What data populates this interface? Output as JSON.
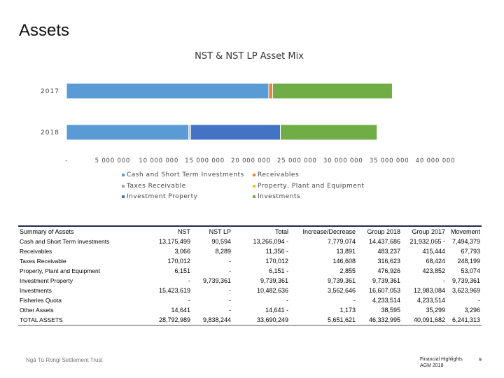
{
  "page": {
    "title": "Assets"
  },
  "chart_data": {
    "type": "bar",
    "orientation": "horizontal",
    "stacked": true,
    "title": "NST & NST LP Asset Mix",
    "categories": [
      "2017",
      "2018"
    ],
    "series": [
      {
        "name": "Cash and Short Term Investments",
        "color": "#5b9bd5",
        "values": [
          21932065,
          13266094
        ]
      },
      {
        "name": "Receivables",
        "color": "#ed7d31",
        "values": [
          415444,
          11356
        ]
      },
      {
        "name": "Taxes Receivable",
        "color": "#a5a5a5",
        "values": [
          0,
          170012
        ]
      },
      {
        "name": "Property, Plant and Equipment",
        "color": "#ffc000",
        "values": [
          0,
          6151
        ]
      },
      {
        "name": "Investment Property",
        "color": "#4472c4",
        "values": [
          0,
          9739361
        ]
      },
      {
        "name": "Investments",
        "color": "#70ad47",
        "values": [
          12983084,
          10482636
        ]
      }
    ],
    "xlim": [
      0,
      40000000
    ],
    "xticks": [
      "-",
      "5 000 000",
      "10 000 000",
      "15 000 000",
      "20 000 000",
      "25 000 000",
      "30 000 000",
      "35 000 000",
      "40 000 000"
    ],
    "legend_position": "bottom"
  },
  "table": {
    "headers": [
      "Summary of Assets",
      "NST",
      "NST LP",
      "Total",
      "Increase/Decrease",
      "Group 2018",
      "Group 2017",
      "Movement"
    ],
    "rows": [
      [
        "Cash and Short Term Investments",
        "13,175,499",
        "90,594",
        "13,266,094 -",
        "7,779,074",
        "14,437,686",
        "21,932,065 -",
        "7,494,379"
      ],
      [
        "Receivables",
        "3,066",
        "8,289",
        "11,356 -",
        "13,891",
        "483,237",
        "415,444",
        "67,793"
      ],
      [
        "Taxes Receivable",
        "170,012",
        "-",
        "170,012",
        "146,608",
        "316,623",
        "68,424",
        "248,199"
      ],
      [
        "Property, Plant and Equipment",
        "6,151",
        "-",
        "6,151 -",
        "2,855",
        "476,926",
        "423,852",
        "53,074"
      ],
      [
        "Investment Property",
        "-",
        "9,739,361",
        "9,739,361",
        "9,739,361",
        "9,739,361",
        "-",
        "9,739,361"
      ],
      [
        "Investments",
        "15,423,619",
        "-",
        "10,482,636",
        "3,562,646",
        "16,607,053",
        "12,983,084",
        "3,623,969"
      ],
      [
        "Fisheries Quota",
        "-",
        "-",
        "-",
        "-",
        "4,233,514",
        "4,233,514",
        "-"
      ],
      [
        "Other Assets",
        "14,641",
        "-",
        "14,641 -",
        "1,173",
        "38,595",
        "35,299",
        "3,296"
      ],
      [
        "TOTAL ASSETS",
        "28,792,989",
        "9,838,244",
        "33,690,249",
        "5,651,621",
        "46,332,995",
        "40,091,682",
        "6,241,313"
      ]
    ]
  },
  "footer": {
    "left": "Ngā Tū Rongi Settlement Trust",
    "right_line1": "Financial Highlights",
    "right_line2": "AGM 2018",
    "page_number": "9"
  }
}
